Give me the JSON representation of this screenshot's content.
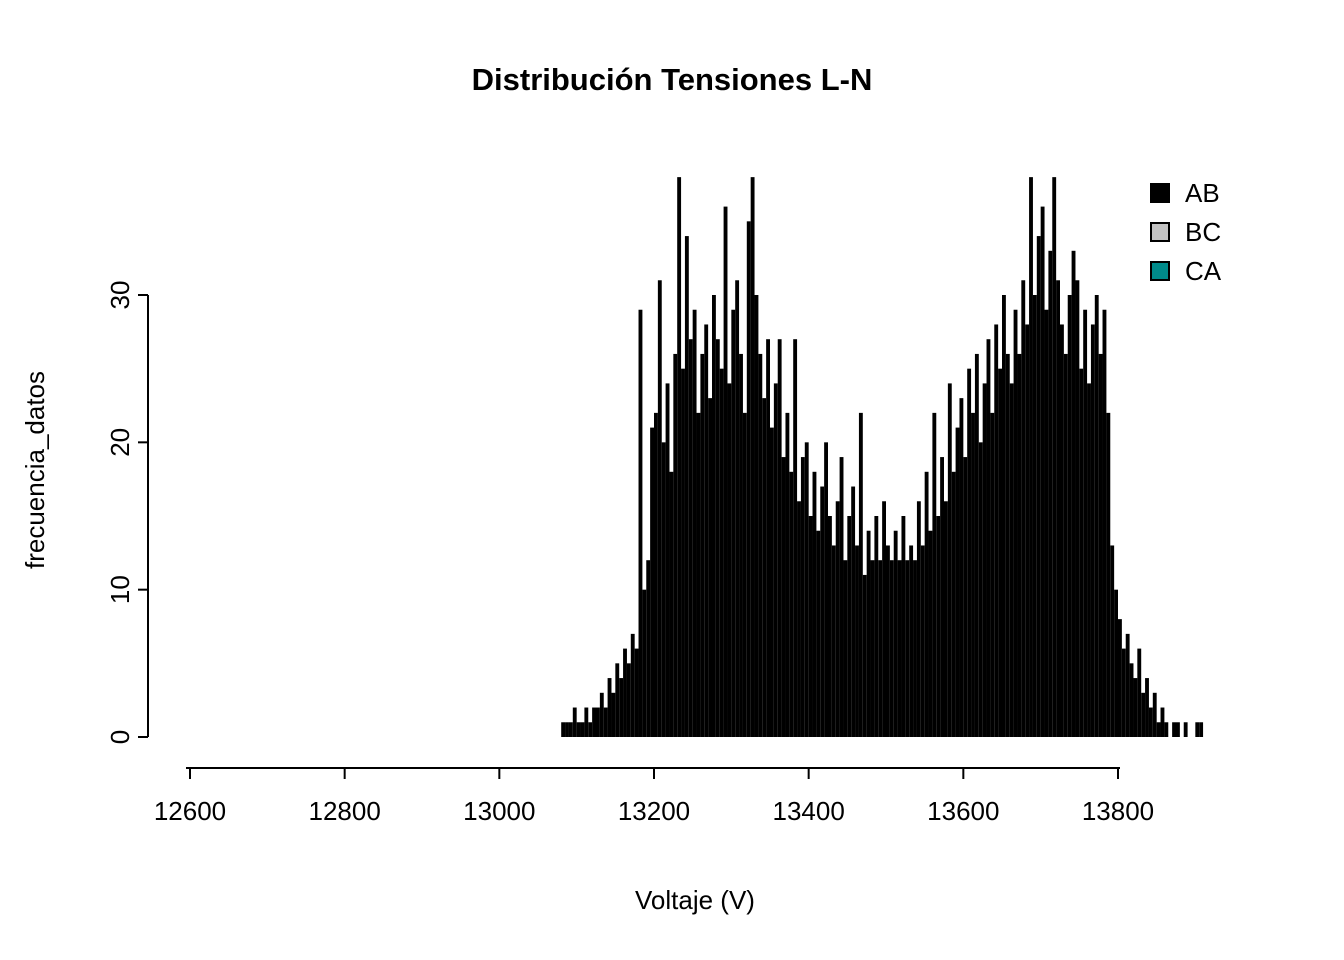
{
  "chart_data": {
    "type": "bar",
    "subtype": "histogram",
    "title": "Distribución Tensiones L-N",
    "xlabel": "Voltaje (V)",
    "ylabel": "frecuencia_datos",
    "x_ticks": [
      12600,
      12800,
      13000,
      13200,
      13400,
      13600,
      13800
    ],
    "y_ticks": [
      0,
      10,
      20,
      30
    ],
    "xlim": [
      12550,
      13920
    ],
    "ylim": [
      0,
      39
    ],
    "grid": "off",
    "legend_position": "top-right",
    "bar_color": "#000000",
    "bin_start": 13080,
    "bin_width": 5,
    "bins": [
      1,
      1,
      1,
      2,
      1,
      1,
      2,
      1,
      2,
      2,
      3,
      2,
      4,
      3,
      5,
      4,
      6,
      5,
      7,
      6,
      29,
      10,
      12,
      21,
      22,
      31,
      20,
      24,
      18,
      26,
      38,
      25,
      34,
      27,
      29,
      22,
      26,
      28,
      23,
      30,
      27,
      25,
      36,
      24,
      29,
      31,
      26,
      22,
      35,
      38,
      30,
      26,
      23,
      27,
      21,
      24,
      27,
      19,
      22,
      18,
      27,
      16,
      19,
      20,
      15,
      18,
      14,
      17,
      20,
      15,
      13,
      16,
      19,
      12,
      15,
      17,
      13,
      22,
      11,
      14,
      12,
      15,
      12,
      16,
      13,
      12,
      14,
      12,
      15,
      12,
      13,
      12,
      16,
      13,
      18,
      14,
      22,
      15,
      19,
      16,
      24,
      18,
      21,
      23,
      19,
      25,
      22,
      26,
      20,
      24,
      27,
      22,
      28,
      25,
      30,
      26,
      24,
      29,
      26,
      31,
      28,
      38,
      30,
      34,
      36,
      29,
      33,
      38,
      31,
      28,
      26,
      30,
      33,
      31,
      25,
      29,
      24,
      28,
      30,
      26,
      29,
      22,
      13,
      10,
      8,
      6,
      7,
      5,
      4,
      6,
      3,
      4,
      2,
      3,
      1,
      2,
      1,
      0,
      1,
      1,
      0,
      1,
      0,
      0,
      1,
      1
    ],
    "series": [
      {
        "label": "AB",
        "color": "#000000"
      },
      {
        "label": "BC",
        "color": "#c3c3c3"
      },
      {
        "label": "CA",
        "color": "#008B8B"
      }
    ]
  }
}
